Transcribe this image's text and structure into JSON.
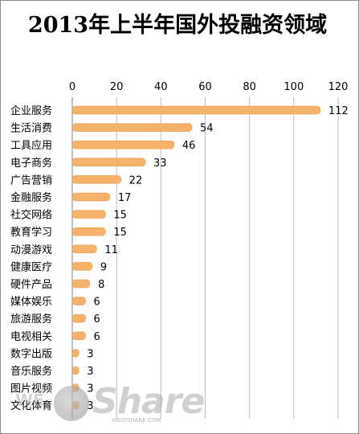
{
  "chart_data": {
    "type": "bar",
    "orientation": "horizontal",
    "title": "2013年上半年国外投融资领域",
    "categories": [
      "企业服务",
      "生活消费",
      "工具应用",
      "电子商务",
      "广告营销",
      "金融服务",
      "社交网络",
      "教育学习",
      "动漫游戏",
      "健康医疗",
      "硬件产品",
      "媒体娱乐",
      "旅游服务",
      "电视相关",
      "数字出版",
      "音乐服务",
      "图片视频",
      "文化体育"
    ],
    "values": [
      112,
      54,
      46,
      33,
      22,
      17,
      15,
      15,
      11,
      9,
      8,
      6,
      6,
      6,
      3,
      3,
      3,
      3
    ],
    "value_labels": [
      "112",
      "54",
      "46",
      "33",
      "22",
      "17",
      "15",
      "15",
      "11",
      "9",
      "8",
      "6",
      "6",
      "6",
      "3",
      "3",
      "3",
      "3"
    ],
    "xlim": [
      0,
      120
    ],
    "xticks": [
      "0",
      "20",
      "40",
      "60",
      "80",
      "100",
      "120"
    ],
    "axis_position": "top",
    "grid": true,
    "bar_color": "#f5b26a"
  },
  "watermark": {
    "brand": "Share",
    "left_text": "WE",
    "sub": "WEIOSHARE.COM"
  }
}
